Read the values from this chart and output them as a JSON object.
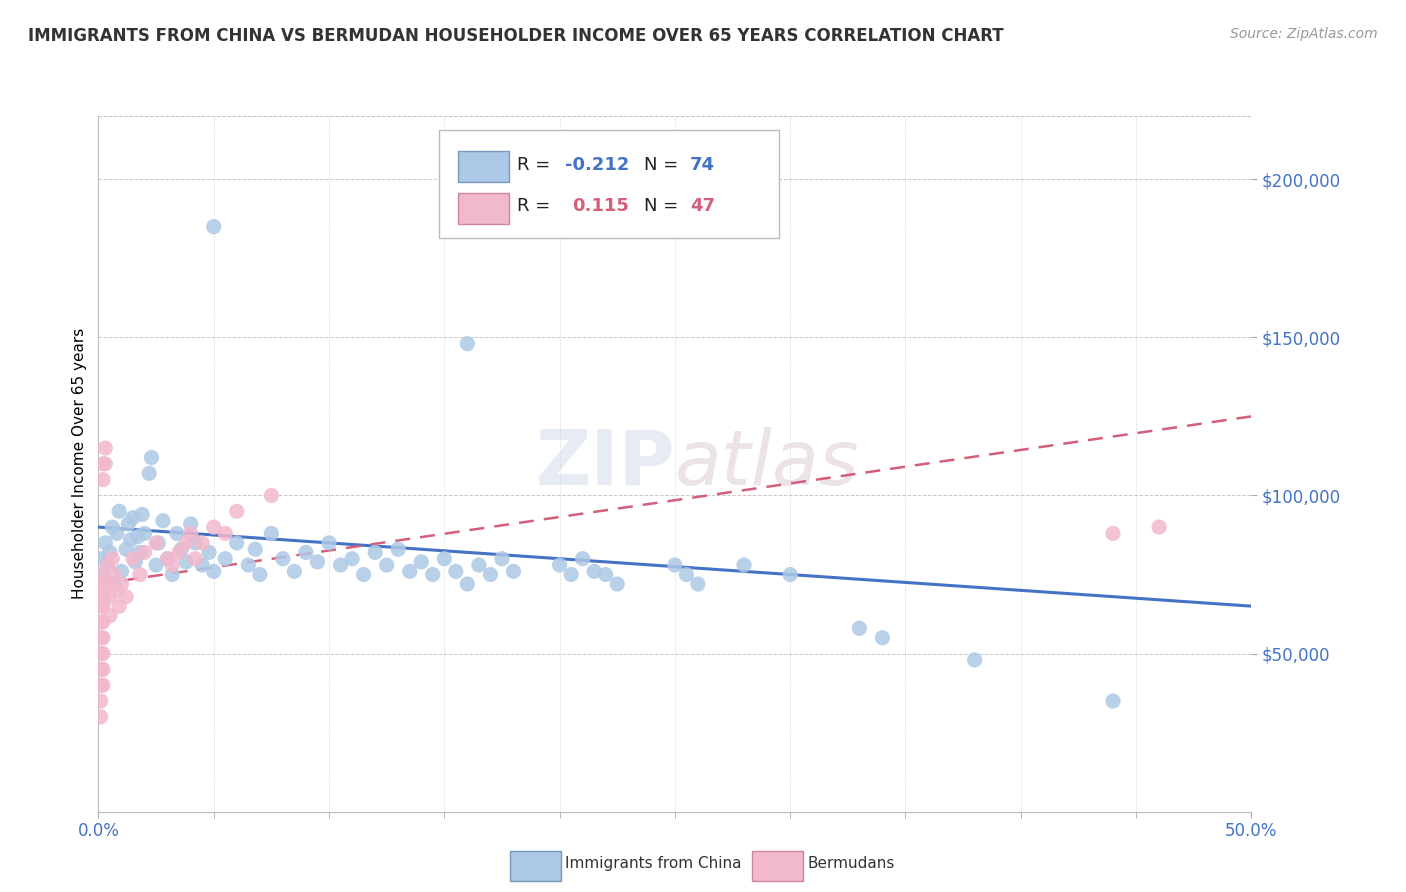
{
  "title": "IMMIGRANTS FROM CHINA VS BERMUDAN HOUSEHOLDER INCOME OVER 65 YEARS CORRELATION CHART",
  "source_text": "Source: ZipAtlas.com",
  "ylabel": "Householder Income Over 65 years",
  "xmin": 0.0,
  "xmax": 0.5,
  "ymin": 0,
  "ymax": 220000,
  "yticks": [
    50000,
    100000,
    150000,
    200000
  ],
  "ytick_labels": [
    "$50,000",
    "$100,000",
    "$150,000",
    "$200,000"
  ],
  "color_china": "#adc8e6",
  "color_bermuda": "#f2b8cc",
  "color_china_line": "#4472c4",
  "color_bermuda_line": "#d45f7a",
  "background_color": "#ffffff",
  "watermark": "ZIPatlas",
  "china_trendline": [
    0.0,
    90000,
    0.5,
    65000
  ],
  "bermuda_trendline": [
    0.0,
    72000,
    0.5,
    125000
  ],
  "china_scatter": [
    [
      0.001,
      80000
    ],
    [
      0.002,
      75000
    ],
    [
      0.003,
      85000
    ],
    [
      0.004,
      78000
    ],
    [
      0.005,
      82000
    ],
    [
      0.006,
      90000
    ],
    [
      0.007,
      72000
    ],
    [
      0.008,
      88000
    ],
    [
      0.009,
      95000
    ],
    [
      0.01,
      76000
    ],
    [
      0.012,
      83000
    ],
    [
      0.013,
      91000
    ],
    [
      0.014,
      86000
    ],
    [
      0.015,
      93000
    ],
    [
      0.016,
      79000
    ],
    [
      0.017,
      87000
    ],
    [
      0.018,
      82000
    ],
    [
      0.019,
      94000
    ],
    [
      0.02,
      88000
    ],
    [
      0.022,
      107000
    ],
    [
      0.023,
      112000
    ],
    [
      0.025,
      78000
    ],
    [
      0.026,
      85000
    ],
    [
      0.028,
      92000
    ],
    [
      0.03,
      80000
    ],
    [
      0.032,
      75000
    ],
    [
      0.034,
      88000
    ],
    [
      0.036,
      83000
    ],
    [
      0.038,
      79000
    ],
    [
      0.04,
      91000
    ],
    [
      0.042,
      85000
    ],
    [
      0.045,
      78000
    ],
    [
      0.048,
      82000
    ],
    [
      0.05,
      76000
    ],
    [
      0.05,
      185000
    ],
    [
      0.055,
      80000
    ],
    [
      0.06,
      85000
    ],
    [
      0.065,
      78000
    ],
    [
      0.068,
      83000
    ],
    [
      0.07,
      75000
    ],
    [
      0.075,
      88000
    ],
    [
      0.08,
      80000
    ],
    [
      0.085,
      76000
    ],
    [
      0.09,
      82000
    ],
    [
      0.095,
      79000
    ],
    [
      0.1,
      85000
    ],
    [
      0.105,
      78000
    ],
    [
      0.11,
      80000
    ],
    [
      0.115,
      75000
    ],
    [
      0.12,
      82000
    ],
    [
      0.125,
      78000
    ],
    [
      0.13,
      83000
    ],
    [
      0.135,
      76000
    ],
    [
      0.14,
      79000
    ],
    [
      0.145,
      75000
    ],
    [
      0.15,
      80000
    ],
    [
      0.155,
      76000
    ],
    [
      0.16,
      148000
    ],
    [
      0.16,
      72000
    ],
    [
      0.165,
      78000
    ],
    [
      0.17,
      75000
    ],
    [
      0.175,
      80000
    ],
    [
      0.18,
      76000
    ],
    [
      0.2,
      78000
    ],
    [
      0.205,
      75000
    ],
    [
      0.21,
      80000
    ],
    [
      0.215,
      76000
    ],
    [
      0.22,
      75000
    ],
    [
      0.225,
      72000
    ],
    [
      0.25,
      78000
    ],
    [
      0.255,
      75000
    ],
    [
      0.26,
      72000
    ],
    [
      0.28,
      78000
    ],
    [
      0.3,
      75000
    ],
    [
      0.33,
      58000
    ],
    [
      0.34,
      55000
    ],
    [
      0.38,
      48000
    ],
    [
      0.44,
      35000
    ]
  ],
  "bermuda_scatter": [
    [
      0.001,
      75000
    ],
    [
      0.001,
      70000
    ],
    [
      0.001,
      65000
    ],
    [
      0.001,
      60000
    ],
    [
      0.001,
      55000
    ],
    [
      0.001,
      50000
    ],
    [
      0.001,
      45000
    ],
    [
      0.001,
      40000
    ],
    [
      0.001,
      35000
    ],
    [
      0.001,
      30000
    ],
    [
      0.002,
      110000
    ],
    [
      0.002,
      105000
    ],
    [
      0.002,
      72000
    ],
    [
      0.002,
      68000
    ],
    [
      0.002,
      65000
    ],
    [
      0.002,
      60000
    ],
    [
      0.002,
      55000
    ],
    [
      0.002,
      50000
    ],
    [
      0.002,
      45000
    ],
    [
      0.002,
      40000
    ],
    [
      0.003,
      115000
    ],
    [
      0.003,
      110000
    ],
    [
      0.004,
      78000
    ],
    [
      0.004,
      72000
    ],
    [
      0.005,
      68000
    ],
    [
      0.005,
      62000
    ],
    [
      0.006,
      80000
    ],
    [
      0.007,
      75000
    ],
    [
      0.008,
      70000
    ],
    [
      0.009,
      65000
    ],
    [
      0.01,
      72000
    ],
    [
      0.012,
      68000
    ],
    [
      0.015,
      80000
    ],
    [
      0.018,
      75000
    ],
    [
      0.02,
      82000
    ],
    [
      0.025,
      85000
    ],
    [
      0.03,
      80000
    ],
    [
      0.032,
      78000
    ],
    [
      0.035,
      82000
    ],
    [
      0.038,
      85000
    ],
    [
      0.04,
      88000
    ],
    [
      0.042,
      80000
    ],
    [
      0.045,
      85000
    ],
    [
      0.05,
      90000
    ],
    [
      0.055,
      88000
    ],
    [
      0.06,
      95000
    ],
    [
      0.075,
      100000
    ],
    [
      0.44,
      88000
    ],
    [
      0.46,
      90000
    ]
  ]
}
